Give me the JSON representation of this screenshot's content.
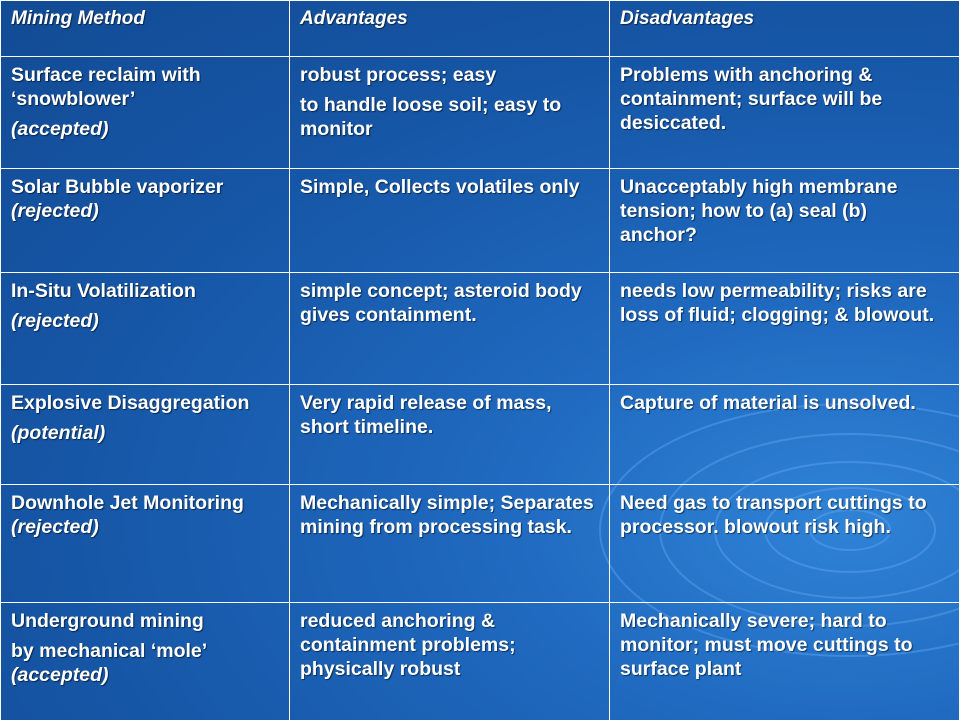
{
  "headers": [
    "Mining Method",
    "Advantages",
    "Disadvantages"
  ],
  "rows": [
    {
      "method": [
        "Surface reclaim with ‘snowblower’",
        "(accepted)"
      ],
      "advantages": [
        "robust process; easy",
        "to handle loose soil; easy to monitor"
      ],
      "disadvantages": "Problems with anchoring & containment; surface will be desiccated."
    },
    {
      "method": [
        "Solar Bubble vaporizer",
        "(rejected)"
      ],
      "advantages": "Simple, Collects volatiles only",
      "disadvantages": "Unacceptably high membrane tension; how to (a) seal (b) anchor?"
    },
    {
      "method": [
        "In-Situ Volatilization",
        "(rejected)"
      ],
      "advantages": "simple concept; asteroid body gives containment.",
      "disadvantages": "needs low permeability; risks are loss of fluid; clogging; & blowout."
    },
    {
      "method": [
        "Explosive Disaggregation",
        "(potential)"
      ],
      "advantages": "Very rapid release of mass, short timeline.",
      "disadvantages": "Capture of material is unsolved."
    },
    {
      "method": [
        "Downhole Jet Monitoring",
        "(rejected)"
      ],
      "advantages": "Mechanically simple; Separates mining from processing task.",
      "disadvantages": "Need gas to transport cuttings to processor. blowout risk high."
    },
    {
      "method": [
        "Underground mining",
        "by mechanical ‘mole’",
        "(accepted)"
      ],
      "advantages": "reduced anchoring & containment problems; physically robust",
      "disadvantages": "Mechanically severe; hard to monitor; must move cuttings to surface plant"
    }
  ]
}
